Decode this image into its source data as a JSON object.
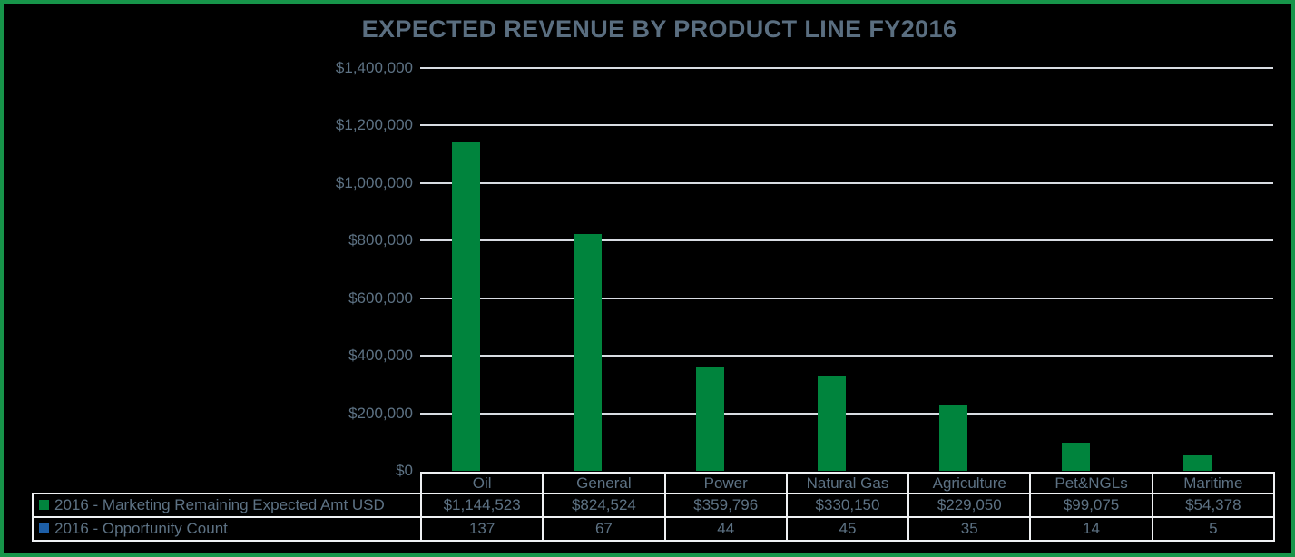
{
  "colors": {
    "frame_border": "#17954a",
    "bar_green": "#00843d",
    "count_blue": "#1d5fa8",
    "grid_line": "#d8dce2",
    "table_border": "#eff1f3",
    "text": "#5d7284",
    "title_text": "#5a6e80",
    "background": "#000000"
  },
  "chart_data": {
    "type": "bar",
    "title": "EXPECTED REVENUE BY PRODUCT LINE FY2016",
    "categories": [
      "Oil",
      "General",
      "Power",
      "Natural Gas",
      "Agriculture",
      "Pet&NGLs",
      "Maritime"
    ],
    "series": [
      {
        "name": "2016 - Marketing Remaining Expected Amt USD",
        "color": "#00843d",
        "values": [
          1144523,
          824524,
          359796,
          330150,
          229050,
          99075,
          54378
        ],
        "value_labels": [
          "$1,144,523",
          "$824,524",
          "$359,796",
          "$330,150",
          "$229,050",
          "$99,075",
          "$54,378"
        ]
      },
      {
        "name": "2016 - Opportunity Count",
        "color": "#1d5fa8",
        "values": [
          137,
          67,
          44,
          45,
          35,
          14,
          5
        ],
        "value_labels": [
          "137",
          "67",
          "44",
          "45",
          "35",
          "14",
          "5"
        ]
      }
    ],
    "y_axis": {
      "min": 0,
      "max": 1400000,
      "step": 200000,
      "tick_labels_top_down": [
        "$1,400,000",
        "$1,200,000",
        "$1,000,000",
        "$800,000",
        "$600,000",
        "$400,000",
        "$200,000",
        "$0"
      ]
    },
    "grid": true,
    "legend_position": "table-left"
  }
}
